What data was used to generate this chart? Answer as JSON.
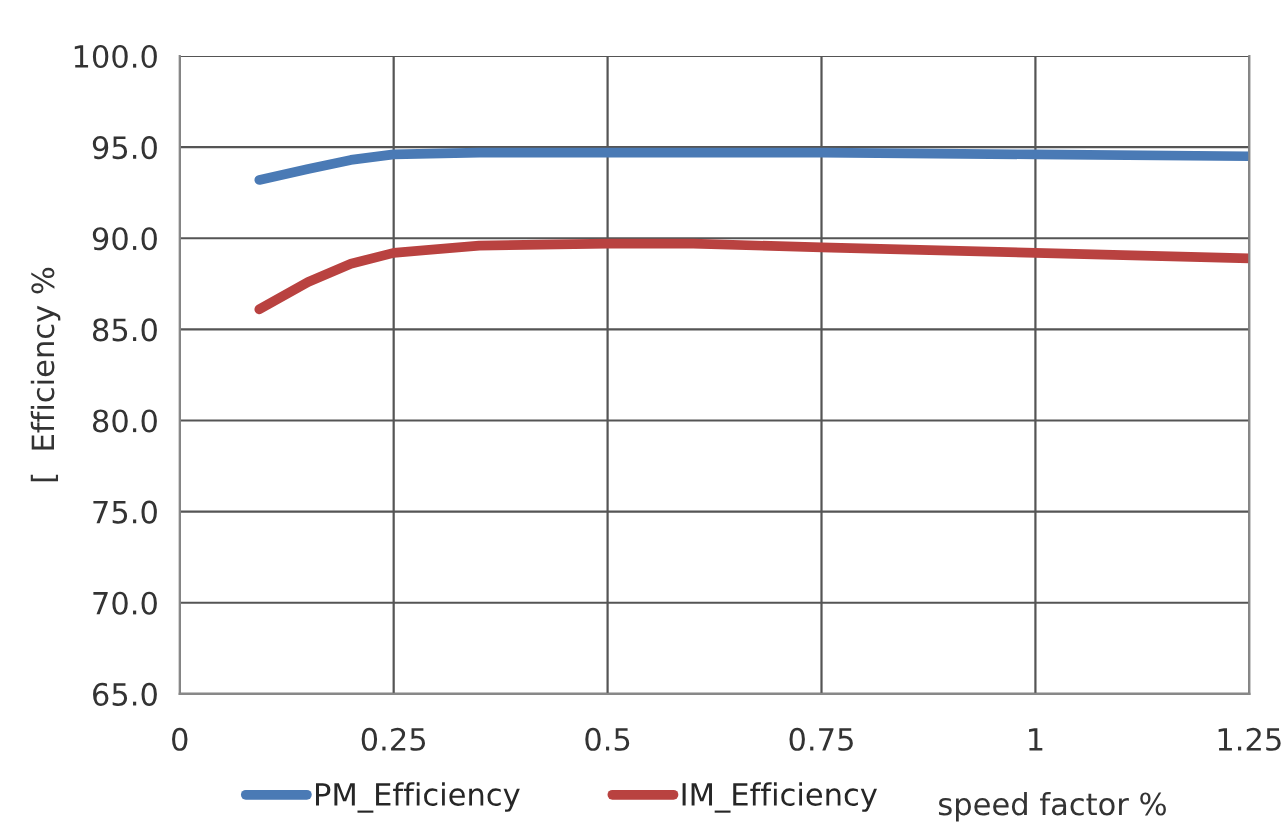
{
  "chart_data": {
    "type": "line",
    "xlabel": "speed factor %",
    "ylabel": "[  Efficiency %",
    "xlim": [
      0,
      1.25
    ],
    "xticks": [
      0,
      0.25,
      0.5,
      0.75,
      1,
      1.25
    ],
    "ylim": [
      65,
      100
    ],
    "yticks": [
      {
        "value": 65,
        "label": "65.0"
      },
      {
        "value": 70,
        "label": "70.0"
      },
      {
        "value": 75,
        "label": "75.0"
      },
      {
        "value": 80,
        "label": "80.0"
      },
      {
        "value": 85,
        "label": "85.0"
      },
      {
        "value": 90,
        "label": "90.0"
      },
      {
        "value": 95,
        "label": "95.0"
      },
      {
        "value": 100,
        "label": "100.0"
      }
    ],
    "grid": true,
    "legend": "bottom",
    "marker": "none",
    "line_style": "solid",
    "x": [
      0.093,
      0.15,
      0.2,
      0.25,
      0.35,
      0.5,
      0.6,
      0.75,
      1.0,
      1.25
    ],
    "series": [
      {
        "name": "PM_Efficiency",
        "color": "#4a7ab5",
        "values": [
          93.2,
          93.8,
          94.3,
          94.6,
          94.7,
          94.7,
          94.7,
          94.7,
          94.6,
          94.5
        ]
      },
      {
        "name": "IM_Efficiency",
        "color": "#b94240",
        "values": [
          86.1,
          87.6,
          88.6,
          89.2,
          89.6,
          89.7,
          89.7,
          89.5,
          89.2,
          88.9
        ]
      }
    ]
  }
}
